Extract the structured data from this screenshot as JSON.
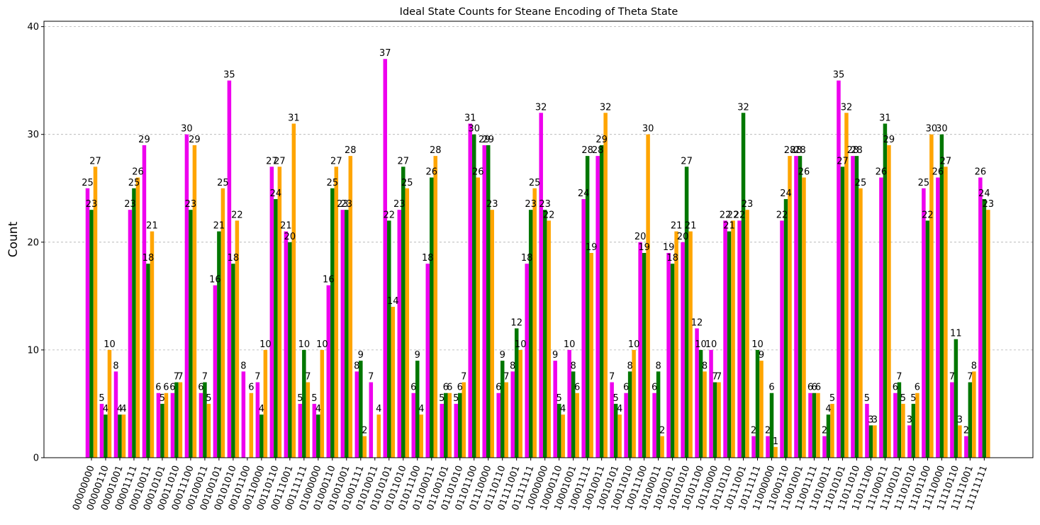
{
  "chart_data": {
    "type": "bar",
    "title": "Ideal State Counts for Steane Encoding of Theta State",
    "xlabel": "",
    "ylabel": "Count",
    "ylim": [
      0,
      40.5
    ],
    "yticks": [
      0,
      10,
      20,
      30,
      40
    ],
    "grid": "y-dashed",
    "legend": "none",
    "categories": [
      "00000000",
      "00000110",
      "00001001",
      "00001111",
      "00010011",
      "00010101",
      "00011010",
      "00011100",
      "00100011",
      "00100101",
      "00101010",
      "00101100",
      "00110000",
      "00110110",
      "00111001",
      "00111111",
      "01000000",
      "01000110",
      "01001001",
      "01001111",
      "01010011",
      "01010101",
      "01011010",
      "01011100",
      "01100011",
      "01100101",
      "01101010",
      "01101100",
      "01110000",
      "01110110",
      "01111001",
      "01111111",
      "10000000",
      "10000110",
      "10001001",
      "10001111",
      "10010011",
      "10010101",
      "10011010",
      "10011100",
      "10100011",
      "10100101",
      "10101010",
      "10101100",
      "10110000",
      "10110110",
      "10111001",
      "10111111",
      "11000000",
      "11000110",
      "11001001",
      "11001111",
      "11010011",
      "11010101",
      "11011010",
      "11011100",
      "11100011",
      "11100101",
      "11101010",
      "11101100",
      "11110000",
      "11110110",
      "11111001",
      "11111111"
    ],
    "series": [
      {
        "color": "#ee00ee",
        "values": [
          25,
          5,
          8,
          23,
          29,
          6,
          6,
          30,
          6,
          16,
          35,
          8,
          7,
          27,
          21,
          5,
          5,
          16,
          23,
          8,
          7,
          37,
          23,
          6,
          18,
          5,
          5,
          31,
          29,
          6,
          8,
          18,
          32,
          9,
          10,
          24,
          28,
          7,
          6,
          20,
          6,
          19,
          20,
          12,
          10,
          22,
          22,
          2,
          2,
          22,
          28,
          6,
          2,
          35,
          28,
          5,
          26,
          6,
          3,
          25,
          26,
          7,
          2,
          26
        ]
      },
      {
        "color": "#007700",
        "values": [
          23,
          4,
          4,
          25,
          18,
          5,
          7,
          23,
          7,
          21,
          18,
          0,
          4,
          24,
          20,
          10,
          4,
          25,
          23,
          9,
          0,
          22,
          27,
          9,
          26,
          6,
          6,
          30,
          29,
          9,
          12,
          23,
          23,
          5,
          8,
          28,
          29,
          5,
          8,
          19,
          8,
          18,
          27,
          10,
          7,
          21,
          32,
          10,
          6,
          24,
          28,
          6,
          4,
          27,
          28,
          3,
          31,
          7,
          5,
          22,
          30,
          11,
          7,
          24
        ]
      },
      {
        "color": "#ffa500",
        "values": [
          27,
          10,
          4,
          26,
          21,
          6,
          7,
          29,
          5,
          25,
          22,
          6,
          10,
          27,
          31,
          7,
          10,
          27,
          28,
          2,
          4,
          14,
          25,
          4,
          28,
          6,
          7,
          26,
          23,
          7,
          10,
          25,
          22,
          4,
          6,
          19,
          32,
          4,
          10,
          30,
          2,
          21,
          21,
          8,
          7,
          22,
          23,
          9,
          1,
          28,
          26,
          6,
          5,
          32,
          25,
          3,
          29,
          5,
          6,
          30,
          27,
          3,
          8,
          23
        ]
      }
    ]
  }
}
